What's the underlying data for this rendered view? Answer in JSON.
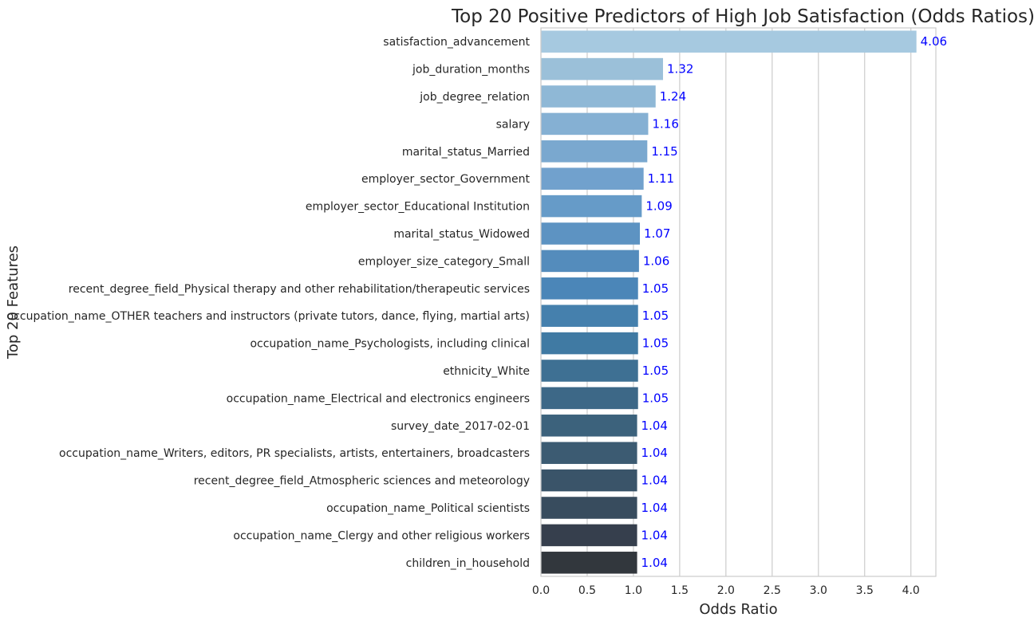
{
  "chart_data": {
    "type": "bar",
    "orientation": "horizontal",
    "title": "Top 20 Positive Predictors of High Job Satisfaction (Odds Ratios)",
    "xlabel": "Odds Ratio",
    "ylabel": "Top 20 Features",
    "xlim": [
      0,
      4.27
    ],
    "xticks": [
      "0.0",
      "0.5",
      "1.0",
      "1.5",
      "2.0",
      "2.5",
      "3.0",
      "3.5",
      "4.0"
    ],
    "grid": "vertical",
    "categories": [
      "satisfaction_advancement",
      "job_duration_months",
      "job_degree_relation",
      "salary",
      "marital_status_Married",
      "employer_sector_Government",
      "employer_sector_Educational Institution",
      "marital_status_Widowed",
      "employer_size_category_Small",
      "recent_degree_field_Physical therapy and other rehabilitation/therapeutic services",
      "occupation_name_OTHER teachers and instructors (private tutors, dance, flying, martial arts)",
      "occupation_name_Psychologists, including clinical",
      "ethnicity_White",
      "occupation_name_Electrical and electronics engineers",
      "survey_date_2017-02-01",
      "occupation_name_Writers, editors, PR specialists, artists, entertainers, broadcasters",
      "recent_degree_field_Atmospheric sciences and meteorology",
      "occupation_name_Political scientists",
      "occupation_name_Clergy and other religious workers",
      "children_in_household"
    ],
    "values": [
      4.06,
      1.32,
      1.24,
      1.16,
      1.15,
      1.11,
      1.09,
      1.07,
      1.06,
      1.05,
      1.05,
      1.05,
      1.05,
      1.05,
      1.04,
      1.04,
      1.04,
      1.04,
      1.04,
      1.04
    ],
    "value_labels": [
      "4.06",
      "1.32",
      "1.24",
      "1.16",
      "1.15",
      "1.11",
      "1.09",
      "1.07",
      "1.06",
      "1.05",
      "1.05",
      "1.05",
      "1.05",
      "1.05",
      "1.04",
      "1.04",
      "1.04",
      "1.04",
      "1.04",
      "1.04"
    ],
    "bar_colors": [
      "#a6c9e0",
      "#9bc0d9",
      "#8fb8d6",
      "#85b0d3",
      "#7aa8cf",
      "#71a1cd",
      "#669bc8",
      "#5d93c2",
      "#548cbc",
      "#4b86b8",
      "#4580ad",
      "#407aa3",
      "#3e7093",
      "#3d6887",
      "#3c627c",
      "#3c5b72",
      "#3a5469",
      "#384c5e",
      "#363f4d",
      "#32373d"
    ],
    "value_label_color": "#0000ff"
  }
}
